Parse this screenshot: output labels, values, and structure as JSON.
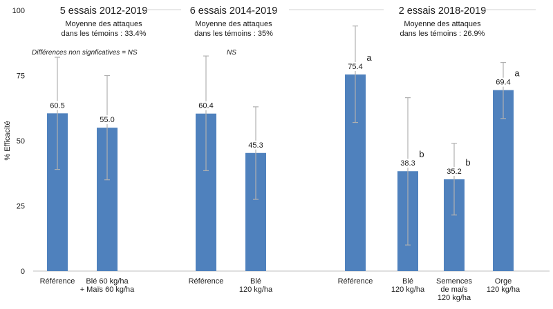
{
  "chart_data": {
    "type": "bar",
    "ylabel": "% Efficacité",
    "ylim": [
      0,
      100
    ],
    "yticks": [
      "0",
      "25",
      "50",
      "75",
      "100"
    ],
    "grid": false,
    "colors": {
      "bar": "#4f81bd",
      "error": "#b0b0b0",
      "axis": "#bfbfbf",
      "rule": "#d0d0d0"
    },
    "groups": [
      {
        "title": "5 essais 2012-2019",
        "subtitle_lines": [
          "Moyenne des attaques",
          "dans les témoins : 33.4%"
        ],
        "note": "Différences non signficatives = NS",
        "bars": [
          {
            "category_lines": [
              "Référence"
            ],
            "value": 60.5,
            "label": "60.5",
            "err_low": 39.0,
            "err_high": 82.0,
            "sig": ""
          },
          {
            "category_lines": [
              "Blé 60 kg/ha",
              "+ Maïs 60 kg/ha"
            ],
            "value": 55.0,
            "label": "55.0",
            "err_low": 35.0,
            "err_high": 75.0,
            "sig": ""
          }
        ]
      },
      {
        "title": "6 essais 2014-2019",
        "subtitle_lines": [
          "Moyenne des attaques",
          "dans les témoins : 35%"
        ],
        "note": "NS",
        "bars": [
          {
            "category_lines": [
              "Référence"
            ],
            "value": 60.4,
            "label": "60.4",
            "err_low": 38.5,
            "err_high": 82.5,
            "sig": ""
          },
          {
            "category_lines": [
              "Blé",
              "120 kg/ha"
            ],
            "value": 45.3,
            "label": "45.3",
            "err_low": 27.5,
            "err_high": 63.0,
            "sig": ""
          }
        ]
      },
      {
        "title": "2 essais 2018-2019",
        "subtitle_lines": [
          "Moyenne des attaques",
          "dans les témoins : 26.9%"
        ],
        "note": "",
        "bars": [
          {
            "category_lines": [
              "Référence"
            ],
            "value": 75.4,
            "label": "75.4",
            "err_low": 57.0,
            "err_high": 94.0,
            "sig": "a"
          },
          {
            "category_lines": [
              "Blé",
              "120 kg/ha"
            ],
            "value": 38.3,
            "label": "38.3",
            "err_low": 10.0,
            "err_high": 66.5,
            "sig": "b"
          },
          {
            "category_lines": [
              "Semences",
              "de maïs",
              "120 kg/ha"
            ],
            "value": 35.2,
            "label": "35.2",
            "err_low": 21.5,
            "err_high": 49.0,
            "sig": "b"
          },
          {
            "category_lines": [
              "Orge",
              "120 kg/ha"
            ],
            "value": 69.4,
            "label": "69.4",
            "err_low": 58.5,
            "err_high": 80.0,
            "sig": "a"
          }
        ]
      }
    ]
  }
}
